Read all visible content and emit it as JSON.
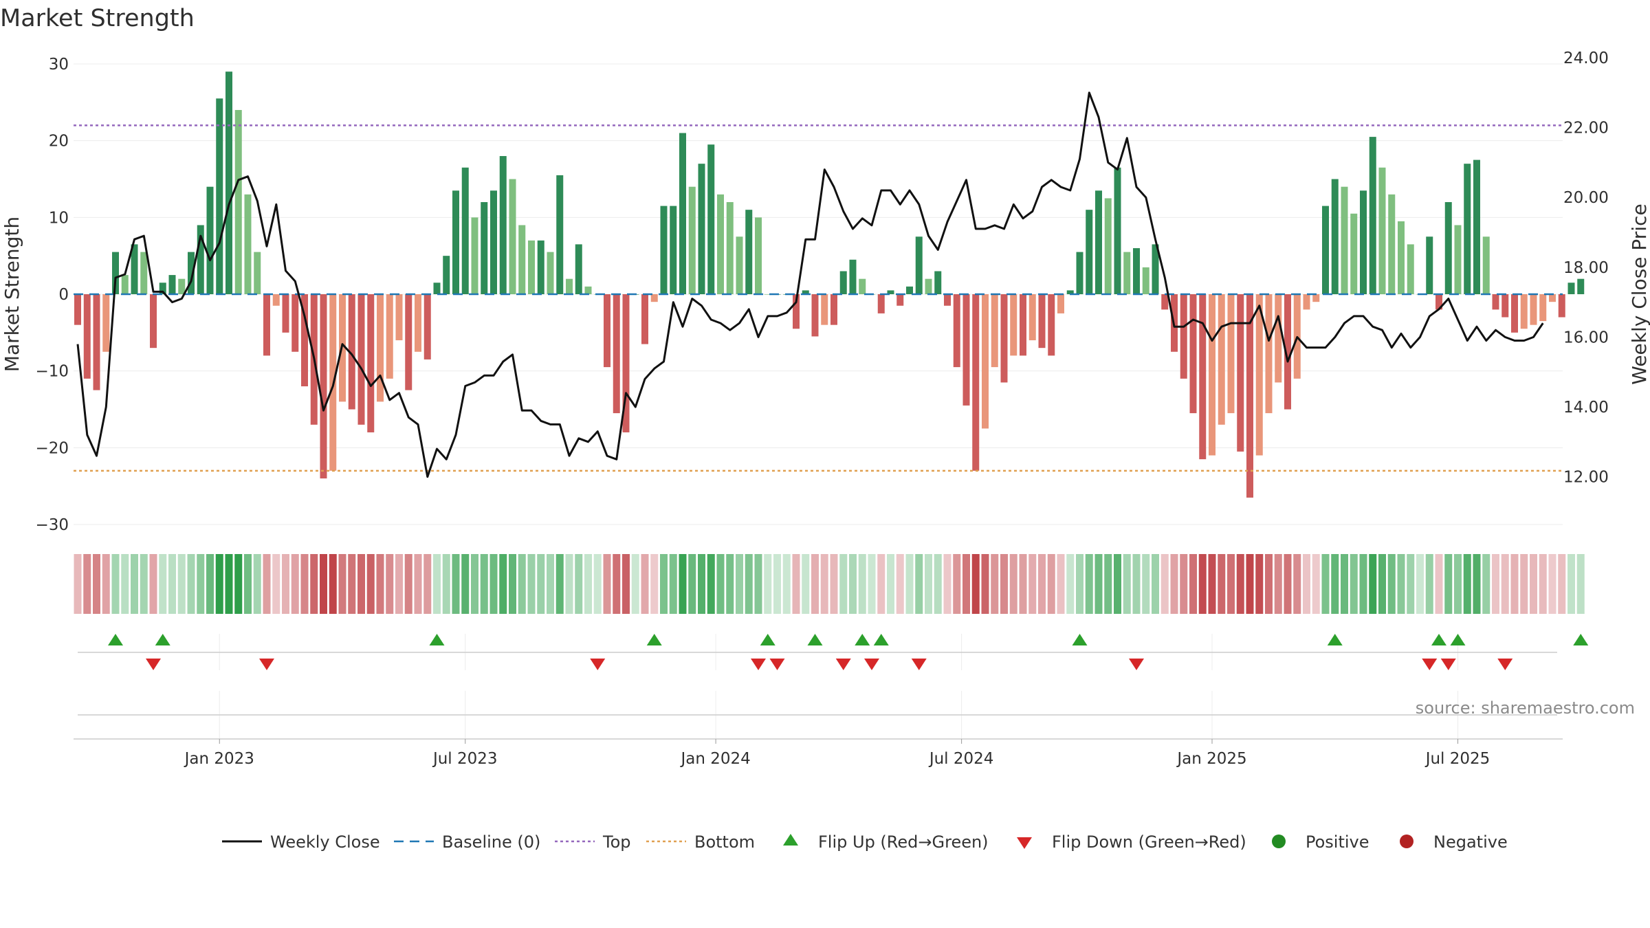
{
  "chart_data": {
    "type": "bar+line",
    "title": "Market Strength",
    "ylabel": "Market Strength",
    "y2label": "Weekly Close Price",
    "ylim": [
      -30,
      30
    ],
    "y2lim": [
      12.0,
      24.0
    ],
    "yticks": [
      30,
      20,
      10,
      0,
      -10,
      -20,
      -30
    ],
    "ytick_labels": [
      "30",
      "20",
      "10",
      "0",
      "−10",
      "−20",
      "−30"
    ],
    "y2ticks": [
      24.0,
      22.0,
      20.0,
      18.0,
      16.0,
      14.0,
      12.0
    ],
    "y2tick_labels": [
      "24.00",
      "22.00",
      "20.00",
      "18.00",
      "16.00",
      "14.00",
      "12.00"
    ],
    "xtick_labels": [
      "Jan 2023",
      "Jul 2023",
      "Jan 2024",
      "Jul 2024",
      "Jan 2025",
      "Jul 2025"
    ],
    "xtick_weeks": [
      15,
      41,
      67.5,
      93.5,
      120,
      146
    ],
    "top_threshold": 22,
    "bottom_threshold": -23,
    "strength": [
      -4,
      -11,
      -12.5,
      -7.5,
      5.5,
      2.5,
      6.5,
      5.5,
      -7,
      1.5,
      2.5,
      2,
      5.5,
      9,
      14,
      25.5,
      29,
      24,
      13,
      5.5,
      -8,
      -1.5,
      -5,
      -7.5,
      -12,
      -17,
      -24,
      -23,
      -14,
      -15,
      -17,
      -18,
      -14,
      -11,
      -6,
      -12.5,
      -7.5,
      -8.5,
      1.5,
      5,
      13.5,
      16.5,
      10,
      12,
      13.5,
      18,
      15,
      9,
      7,
      7,
      5.5,
      15.5,
      2,
      6.5,
      1,
      0,
      -9.5,
      -15.5,
      -18,
      0,
      -6.5,
      -1,
      11.5,
      11.5,
      21,
      14,
      17,
      19.5,
      13,
      12,
      7.5,
      11,
      10,
      0,
      0,
      0,
      -4.5,
      0.5,
      -5.5,
      -4,
      -4,
      3,
      4.5,
      2,
      0,
      -2.5,
      0.5,
      -1.5,
      1,
      7.5,
      2,
      3,
      -1.5,
      -9.5,
      -14.5,
      -23,
      -17.5,
      -9.5,
      -11.5,
      -8,
      -8,
      -6,
      -7,
      -8,
      -2.5,
      0.5,
      5.5,
      11,
      13.5,
      12.5,
      16.5,
      5.5,
      6,
      3.5,
      6.5,
      -2,
      -7.5,
      -11,
      -15.5,
      -21.5,
      -21,
      -17,
      -15.5,
      -20.5,
      -26.5,
      -21,
      -15.5,
      -11.5,
      -15,
      -11,
      -2,
      -1,
      11.5,
      15,
      14,
      10.5,
      13.5,
      20.5,
      16.5,
      13,
      9.5,
      6.5,
      0,
      7.5,
      -2,
      12,
      9,
      17,
      17.5,
      7.5,
      -2,
      -3,
      -5,
      -4.5,
      -4,
      -3.5,
      -1,
      -3,
      1.5,
      2
    ],
    "close": [
      15.8,
      13.2,
      12.6,
      14.0,
      17.7,
      17.8,
      18.8,
      18.9,
      17.3,
      17.3,
      17.0,
      17.1,
      17.6,
      18.9,
      18.2,
      18.7,
      19.8,
      20.5,
      20.6,
      19.9,
      18.6,
      19.8,
      17.9,
      17.6,
      16.6,
      15.4,
      13.9,
      14.6,
      15.8,
      15.5,
      15.1,
      14.6,
      14.9,
      14.2,
      14.4,
      13.7,
      13.5,
      12.0,
      12.8,
      12.5,
      13.2,
      14.6,
      14.7,
      14.9,
      14.9,
      15.3,
      15.5,
      13.9,
      13.9,
      13.6,
      13.5,
      13.5,
      12.6,
      13.1,
      13.0,
      13.3,
      12.6,
      12.5,
      14.4,
      14.0,
      14.8,
      15.1,
      15.3,
      17.0,
      16.3,
      17.1,
      16.9,
      16.5,
      16.4,
      16.2,
      16.4,
      16.8,
      16.0,
      16.6,
      16.6,
      16.7,
      17.0,
      18.8,
      18.8,
      20.8,
      20.3,
      19.6,
      19.1,
      19.4,
      19.2,
      20.2,
      20.2,
      19.8,
      20.2,
      19.8,
      18.9,
      18.5,
      19.3,
      19.9,
      20.5,
      19.1,
      19.1,
      19.2,
      19.1,
      19.8,
      19.4,
      19.6,
      20.3,
      20.5,
      20.3,
      20.2,
      21.1,
      23.0,
      22.3,
      21.0,
      20.8,
      21.7,
      20.3,
      20.0,
      18.8,
      17.7,
      16.3,
      16.3,
      16.5,
      16.4,
      15.9,
      16.3,
      16.4,
      16.4,
      16.4,
      16.9,
      15.9,
      16.6,
      15.3,
      16.0,
      15.7,
      15.7,
      15.7,
      16.0,
      16.4,
      16.6,
      16.6,
      16.3,
      16.2,
      15.7,
      16.1,
      15.7,
      16.0,
      16.6,
      16.8,
      17.1,
      16.5,
      15.9,
      16.3,
      15.9,
      16.2,
      16.0,
      15.9,
      15.9,
      16.0,
      16.4
    ],
    "flip_up_weeks": [
      4,
      9,
      38,
      61,
      73,
      78,
      83,
      85,
      106,
      133,
      144,
      146,
      159
    ],
    "flip_down_weeks": [
      8,
      20,
      55,
      72,
      74,
      81,
      84,
      89,
      112,
      143,
      145,
      151
    ],
    "colors": {
      "pos_strong": "#2e8b57",
      "pos_light": "#7fbf7f",
      "neg_strong": "#cd5c5c",
      "neg_light": "#e9967a",
      "close_line": "#111111",
      "baseline": "#1f77b4",
      "top": "#9467bd",
      "bottom": "#e0a050",
      "flip_up": "#2ca02c",
      "flip_down": "#d62728",
      "positive": "#228b22",
      "negative": "#b22222"
    },
    "legend": [
      {
        "key": "close",
        "label": "Weekly Close"
      },
      {
        "key": "baseline",
        "label": "Baseline (0)"
      },
      {
        "key": "top",
        "label": "Top"
      },
      {
        "key": "bottom",
        "label": "Bottom"
      },
      {
        "key": "flip_up",
        "label": "Flip Up (Red→Green)"
      },
      {
        "key": "flip_down",
        "label": "Flip Down (Green→Red)"
      },
      {
        "key": "positive",
        "label": "Positive"
      },
      {
        "key": "negative",
        "label": "Negative"
      }
    ],
    "source": "source: sharemaestro.com",
    "legend_position": "bottom"
  }
}
